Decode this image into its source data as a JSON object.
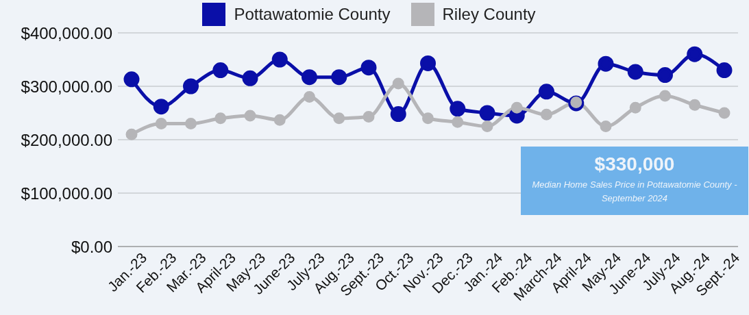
{
  "chart_data": {
    "type": "line",
    "categories": [
      "Jan.-23",
      "Feb.-23",
      "Mar.-23",
      "April-23",
      "May-23",
      "June-23",
      "July-23",
      "Aug.-23",
      "Sept.-23",
      "Oct.-23",
      "Nov.-23",
      "Dec.-23",
      "Jan.-24",
      "Feb.-24",
      "March-24",
      "April-24",
      "May-24",
      "June-24",
      "July-24",
      "Aug.-24",
      "Sept.-24"
    ],
    "series": [
      {
        "name": "Pottawatomie County",
        "color": "#0a0fa8",
        "values": [
          313000,
          262000,
          300000,
          330000,
          315000,
          350000,
          317000,
          317000,
          335000,
          248000,
          343000,
          258000,
          250000,
          245000,
          290000,
          268000,
          342000,
          327000,
          321000,
          360000,
          330000
        ]
      },
      {
        "name": "Riley County",
        "color": "#b5b5b8",
        "values": [
          210000,
          230000,
          230000,
          240000,
          245000,
          237000,
          280000,
          240000,
          243000,
          305000,
          240000,
          233000,
          225000,
          260000,
          247000,
          270000,
          225000,
          260000,
          282000,
          265000,
          250000
        ]
      }
    ],
    "ylim": [
      0,
      400000
    ],
    "yticks": [
      {
        "value": 0,
        "label": "$0.00"
      },
      {
        "value": 100000,
        "label": "$100,000.00"
      },
      {
        "value": 200000,
        "label": "$200,000.00"
      },
      {
        "value": 300000,
        "label": "$300,000.00"
      },
      {
        "value": 400000,
        "label": "$400,000.00"
      }
    ],
    "grid": "y",
    "legend": "top",
    "marker": "circle",
    "line_style": "solid",
    "annotations": [
      "$330,000",
      "Median Home Sales Price in Pottawatomie County - September 2024"
    ]
  }
}
